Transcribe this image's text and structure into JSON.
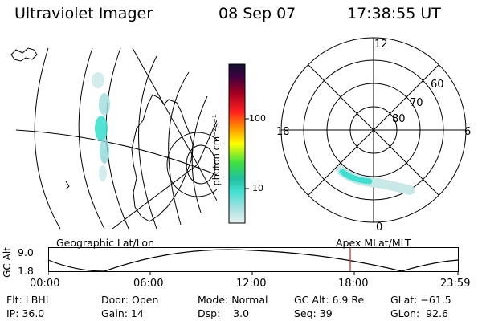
{
  "header": {
    "title": "Ultraviolet Imager",
    "date": "08 Sep 07",
    "time": "17:38:55 UT"
  },
  "colorbar": {
    "label": "photon cm⁻²s⁻¹",
    "ticks": [
      "100",
      "10"
    ]
  },
  "polar": {
    "hours": [
      "12",
      "18",
      "6",
      "0"
    ],
    "lats": [
      "60",
      "70",
      "80"
    ]
  },
  "strip": {
    "ylabel": "GC Alt",
    "left_label": "Geographic Lat/Lon",
    "right_label": "Apex MLat/MLT",
    "y_ticks": [
      "9.0",
      "1.8"
    ],
    "x_ticks": [
      "00:00",
      "06:00",
      "12:00",
      "18:00",
      "23:59"
    ]
  },
  "info": {
    "row1": [
      "Flt: LBHL",
      "Door: Open",
      "Mode: Normal",
      "GC Alt: 6.9 Re",
      "GLat: −61.5"
    ],
    "row2": [
      "IP: 36.0",
      "Gain: 14",
      "Dsp:    3.0",
      "Seq: 39",
      "GLon:  92.6"
    ]
  },
  "colors": {
    "aurora": "#40e0d0",
    "aurora_faint": "#c8e8e8",
    "time_marker": "#cc2222"
  }
}
